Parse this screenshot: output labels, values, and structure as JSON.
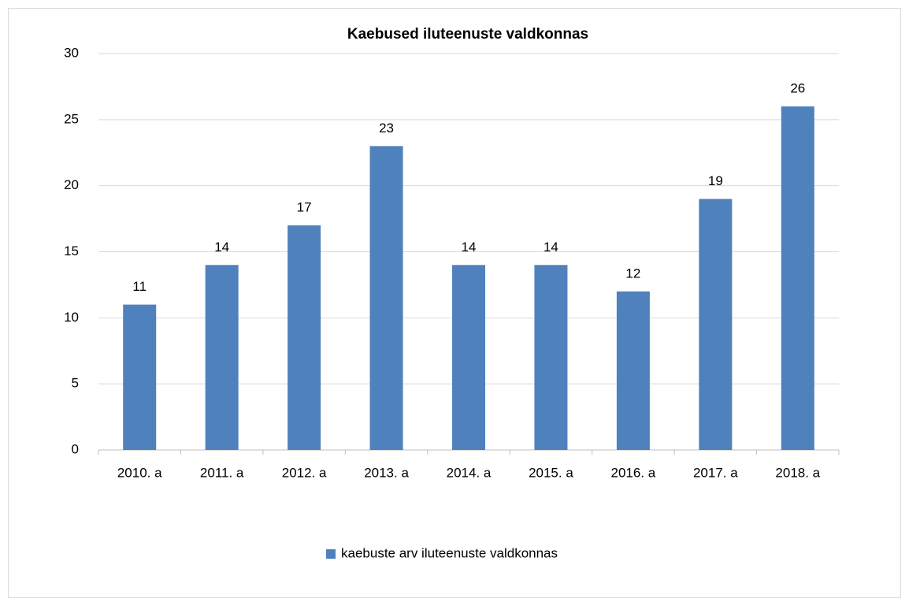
{
  "chart_data": {
    "type": "bar",
    "title": "Kaebused iluteenuste valdkonnas",
    "categories": [
      "2010. a",
      "2011. a",
      "2012. a",
      "2013. a",
      "2014. a",
      "2015. a",
      "2016. a",
      "2017. a",
      "2018. a"
    ],
    "series": [
      {
        "name": "kaebuste arv iluteenuste valdkonnas",
        "color": "#4f81bd",
        "values": [
          11,
          14,
          17,
          23,
          14,
          14,
          12,
          19,
          26
        ]
      }
    ],
    "ylim": [
      0,
      30
    ],
    "yticks": [
      0,
      5,
      10,
      15,
      20,
      25,
      30
    ],
    "grid": true,
    "legend": "bottom"
  }
}
